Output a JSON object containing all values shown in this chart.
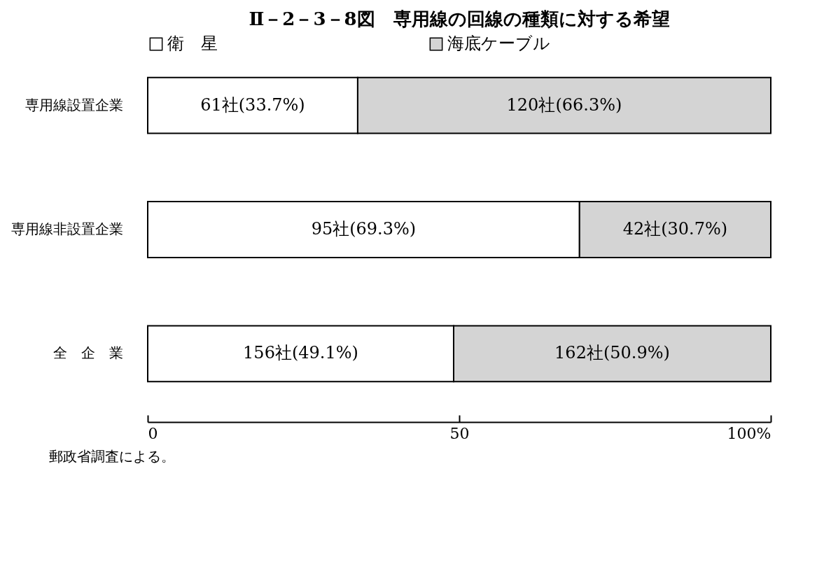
{
  "chart_data": {
    "type": "bar",
    "orientation": "horizontal",
    "stacked": true,
    "title": "Ⅱ－2－3－8図　専用線の回線の種類に対する希望",
    "categories": [
      "専用線設置企業",
      "専用線非設置企業",
      "全　企　業"
    ],
    "series": [
      {
        "name": "衛　星",
        "color": "#ffffff",
        "values": [
          33.7,
          69.3,
          49.1
        ],
        "value_labels": [
          "61社(33.7%)",
          "95社(69.3%)",
          "156社(49.1%)"
        ]
      },
      {
        "name": "海底ケーブル",
        "color": "#d4d4d4",
        "values": [
          66.3,
          30.7,
          50.9
        ],
        "value_labels": [
          "120社(66.3%)",
          "42社(30.7%)",
          "162社(50.9%)"
        ]
      }
    ],
    "xlim": [
      0,
      100
    ],
    "xticks": [
      0,
      50,
      {
        "value": 100,
        "label": "100%"
      }
    ],
    "grid": false,
    "legend": "top",
    "annotations": [
      "郵政省調査による。"
    ]
  }
}
